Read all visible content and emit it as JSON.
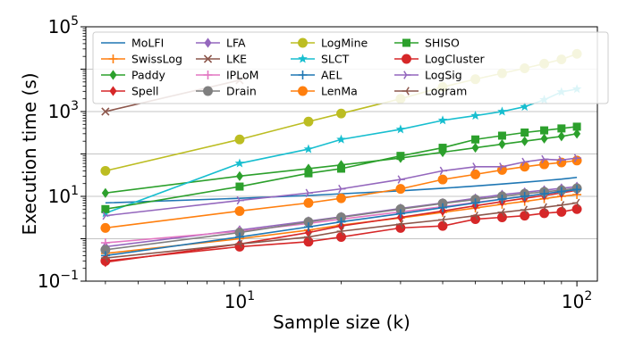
{
  "chart_data": {
    "type": "line",
    "xscale": "log",
    "yscale": "log",
    "xlabel": "Sample size (k)",
    "ylabel": "Execution time (s)",
    "xlim": [
      3.5,
      115
    ],
    "ylim": [
      0.1,
      100000
    ],
    "grid": "horizontal-major",
    "legend_position": "top-left",
    "x_ticks": [
      {
        "value": 10,
        "base": "10",
        "exp": "1"
      },
      {
        "value": 100,
        "base": "10",
        "exp": "2"
      }
    ],
    "y_ticks": [
      {
        "value": 0.1,
        "base": "10",
        "exp": "−1"
      },
      {
        "value": 10,
        "base": "10",
        "exp": "1"
      },
      {
        "value": 1000,
        "base": "10",
        "exp": "3"
      },
      {
        "value": 100000,
        "base": "10",
        "exp": "5"
      }
    ],
    "series": [
      {
        "name": "MoLFI",
        "color": "#1f77b4",
        "marker": "none",
        "x": [
          4,
          10,
          16,
          20,
          30,
          40,
          50,
          60,
          70,
          80,
          90,
          100
        ],
        "y": [
          7,
          9,
          10.5,
          11.5,
          13.5,
          15.5,
          17.5,
          19.5,
          21.5,
          23.5,
          25.5,
          28
        ]
      },
      {
        "name": "SwissLog",
        "color": "#ff7f0e",
        "marker": "plus",
        "x": [
          4,
          10,
          16,
          20,
          30,
          40,
          50,
          60,
          70,
          80,
          90,
          100
        ],
        "y": [
          0.45,
          1.0,
          1.6,
          2.1,
          3.1,
          4.2,
          5.3,
          6.5,
          7.6,
          8.8,
          10,
          11
        ]
      },
      {
        "name": "Paddy",
        "color": "#2ca02c",
        "marker": "diamond",
        "x": [
          4,
          10,
          16,
          20,
          30,
          40,
          50,
          60,
          70,
          80,
          90,
          100
        ],
        "y": [
          12,
          30,
          45,
          55,
          80,
          110,
          140,
          170,
          200,
          230,
          260,
          300
        ]
      },
      {
        "name": "Spell",
        "color": "#d62728",
        "marker": "diamond",
        "x": [
          4,
          10,
          16,
          20,
          30,
          40,
          50,
          60,
          70,
          80,
          90,
          100
        ],
        "y": [
          0.28,
          0.75,
          1.4,
          2.0,
          3.2,
          4.5,
          6.0,
          7.5,
          9,
          10.5,
          12,
          14
        ]
      },
      {
        "name": "LFA",
        "color": "#9467bd",
        "marker": "diamond",
        "x": [
          4,
          10,
          16,
          20,
          30,
          40,
          50,
          60,
          70,
          80,
          90,
          100
        ],
        "y": [
          0.65,
          1.6,
          2.6,
          3.3,
          5.2,
          7.0,
          9.0,
          11,
          12.5,
          14,
          15.5,
          17
        ]
      },
      {
        "name": "LKE",
        "color": "#8c564b",
        "marker": "x",
        "x": [
          4,
          10
        ],
        "y": [
          1000,
          5500
        ]
      },
      {
        "name": "IPLoM",
        "color": "#e377c2",
        "marker": "plus",
        "x": [
          4,
          10,
          16,
          20,
          30,
          40,
          50,
          60,
          70,
          80,
          90,
          100
        ],
        "y": [
          0.8,
          1.5,
          2.3,
          2.9,
          4.3,
          5.7,
          7.2,
          8.6,
          10,
          11.5,
          13,
          14.5
        ]
      },
      {
        "name": "Drain",
        "color": "#7f7f7f",
        "marker": "circle",
        "x": [
          4,
          10,
          16,
          20,
          30,
          40,
          50,
          60,
          70,
          80,
          90,
          100
        ],
        "y": [
          0.55,
          1.4,
          2.5,
          3.2,
          5.0,
          6.8,
          8.4,
          10,
          11.5,
          12.8,
          14,
          15.5
        ]
      },
      {
        "name": "LogMine",
        "color": "#bcbd22",
        "marker": "circle",
        "x": [
          4,
          10,
          16,
          20,
          30,
          40,
          50,
          60,
          70,
          80,
          90,
          100
        ],
        "y": [
          40,
          220,
          580,
          900,
          2000,
          3800,
          5800,
          8000,
          10500,
          13500,
          17000,
          23000
        ]
      },
      {
        "name": "SLCT",
        "color": "#17becf",
        "marker": "star",
        "x": [
          4,
          10,
          16,
          20,
          30,
          40,
          50,
          60,
          70,
          80,
          90,
          100
        ],
        "y": [
          4,
          60,
          130,
          220,
          380,
          620,
          800,
          1000,
          1300,
          1900,
          2900,
          3400
        ]
      },
      {
        "name": "AEL",
        "color": "#1f77b4",
        "marker": "plus",
        "x": [
          4,
          10,
          16,
          20,
          30,
          40,
          50,
          60,
          70,
          80,
          90,
          100
        ],
        "y": [
          0.4,
          1.1,
          1.9,
          2.5,
          3.9,
          5.4,
          7.0,
          8.6,
          10,
          11.5,
          13,
          14.5
        ]
      },
      {
        "name": "LenMa",
        "color": "#ff7f0e",
        "marker": "circle",
        "x": [
          4,
          10,
          16,
          20,
          30,
          40,
          50,
          60,
          70,
          80,
          90,
          100
        ],
        "y": [
          1.8,
          4.5,
          7,
          9,
          15,
          25,
          33,
          42,
          50,
          57,
          63,
          70
        ]
      },
      {
        "name": "SHISO",
        "color": "#2ca02c",
        "marker": "square",
        "x": [
          4,
          10,
          16,
          20,
          30,
          40,
          50,
          60,
          70,
          80,
          90,
          100
        ],
        "y": [
          5,
          17,
          35,
          45,
          90,
          140,
          220,
          270,
          320,
          360,
          400,
          440
        ]
      },
      {
        "name": "LogCluster",
        "color": "#d62728",
        "marker": "circle",
        "x": [
          4,
          10,
          16,
          20,
          30,
          40,
          50,
          60,
          70,
          80,
          90,
          100
        ],
        "y": [
          0.3,
          0.65,
          0.85,
          1.1,
          1.8,
          2.0,
          2.9,
          3.2,
          3.5,
          4.0,
          4.3,
          5.0
        ]
      },
      {
        "name": "LogSig",
        "color": "#9467bd",
        "marker": "tri-right",
        "x": [
          4,
          10,
          16,
          20,
          30,
          40,
          50,
          60,
          70,
          80,
          90,
          100
        ],
        "y": [
          3.5,
          8,
          12,
          15,
          25,
          40,
          50,
          50,
          65,
          75,
          72,
          80
        ]
      },
      {
        "name": "Logram",
        "color": "#8c564b",
        "marker": "tri-left",
        "x": [
          4,
          10,
          16,
          20,
          30,
          40,
          50,
          60,
          70,
          80,
          90,
          100
        ],
        "y": [
          0.35,
          0.75,
          1.1,
          1.5,
          2.2,
          2.8,
          3.5,
          4.2,
          4.8,
          5.5,
          6.2,
          7.0
        ]
      }
    ]
  }
}
